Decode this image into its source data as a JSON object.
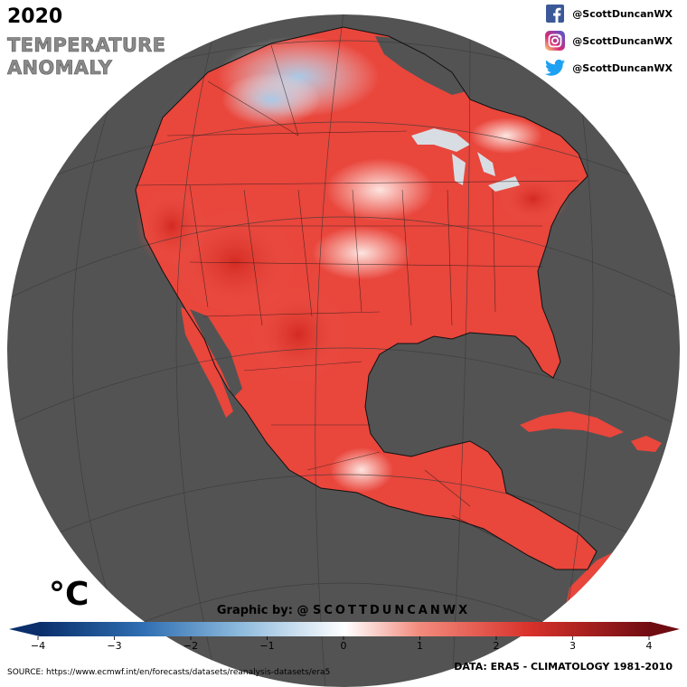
{
  "header": {
    "year": "2020",
    "title_line1": "TEMPERATURE",
    "title_line2": "ANOMALY"
  },
  "social": [
    {
      "icon": "facebook-icon",
      "handle": "@ScottDuncanWX",
      "color": "#3b5998"
    },
    {
      "icon": "instagram-icon",
      "handle": "@ScottDuncanWX",
      "color": "#c13584"
    },
    {
      "icon": "twitter-icon",
      "handle": "@ScottDuncanWX",
      "color": "#1da1f2"
    }
  ],
  "map": {
    "ocean_color": "#535353",
    "land_warm_color": "#e9463c",
    "land_cool_color": "#c9ddef"
  },
  "colorbar": {
    "unit": "°C",
    "ticks": [
      "−4",
      "−3",
      "−2",
      "−1",
      "0",
      "1",
      "2",
      "3",
      "4"
    ],
    "range": [
      -4,
      4
    ],
    "colors": [
      "#0a2f6b",
      "#2f6fb3",
      "#8fbbdd",
      "#ffffff",
      "#f28c7e",
      "#d9322b",
      "#6f0c12"
    ]
  },
  "footer": {
    "credit_prefix": "Graphic by: @ ",
    "credit_name": "SCOTTDUNCANWX",
    "source": "SOURCE: https://www.ecmwf.int/en/forecasts/datasets/reanalysis-datasets/era5",
    "data_note": "DATA: ERA5 - CLIMATOLOGY 1981-2010"
  }
}
